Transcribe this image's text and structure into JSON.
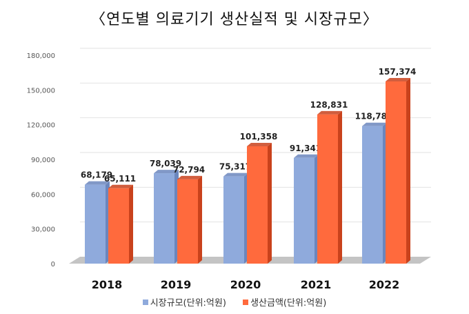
{
  "chart_data": {
    "type": "bar",
    "title": "〈연도별 의료기기 생산실적 및 시장규모〉",
    "categories": [
      "2018",
      "2019",
      "2020",
      "2021",
      "2022"
    ],
    "series": [
      {
        "name": "시장규모(단위:억원)",
        "values": [
          68179,
          78039,
          75317,
          91341,
          118782
        ],
        "color": "#8faadc",
        "side_color": "#6b86bd"
      },
      {
        "name": "생산금액(단위:억원)",
        "values": [
          65111,
          72794,
          101358,
          128831,
          157374
        ],
        "color": "#ff6a3d",
        "side_color": "#c9421c"
      }
    ],
    "value_labels": {
      "series_0": [
        "68,179",
        "78,039",
        "75,317",
        "91,341",
        "118,782"
      ],
      "series_1": [
        "65,111",
        "72,794",
        "101,358",
        "128,831",
        "157,374"
      ]
    },
    "y_ticks": [
      0,
      30000,
      60000,
      90000,
      120000,
      150000,
      180000
    ],
    "y_tick_labels": [
      "0",
      "30,000",
      "60,000",
      "90,000",
      "120,000",
      "150,000",
      "180,000"
    ],
    "ylim": [
      0,
      180000
    ],
    "grid": true,
    "legend_position": "bottom",
    "style": "3d"
  }
}
